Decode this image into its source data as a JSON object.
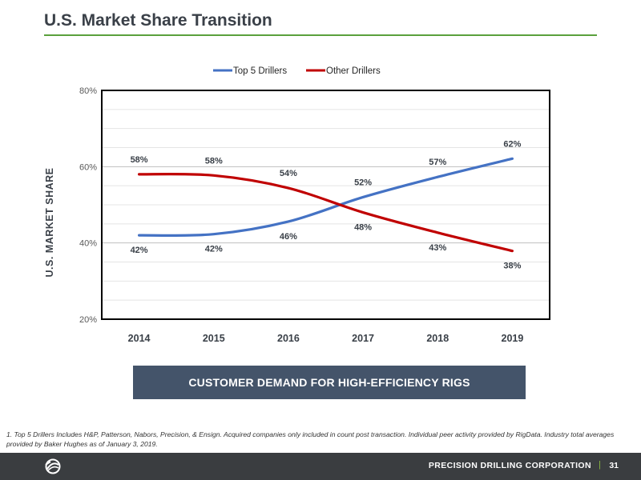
{
  "header": {
    "title": "U.S. Market Share Transition"
  },
  "chart_data": {
    "type": "line",
    "categories": [
      "2014",
      "2015",
      "2016",
      "2017",
      "2018",
      "2019"
    ],
    "series": [
      {
        "name": "Top 5 Drillers",
        "color": "#4472c4",
        "values": [
          42,
          42.3,
          45.6,
          52,
          57.3,
          62.1
        ],
        "labels": [
          "42%",
          "42%",
          "46%",
          "52%",
          "57%",
          "62%"
        ]
      },
      {
        "name": "Other Drillers",
        "color": "#c00000",
        "values": [
          58,
          57.7,
          54.4,
          48,
          42.7,
          37.9
        ],
        "labels": [
          "58%",
          "58%",
          "54%",
          "48%",
          "43%",
          "38%"
        ]
      }
    ],
    "ylabel": "U.S. MARKET SHARE",
    "ylim": [
      20,
      80
    ],
    "yticks": [
      20,
      40,
      60,
      80
    ],
    "ytick_labels": [
      "20%",
      "40%",
      "60%",
      "80%"
    ],
    "legend": "top-center",
    "grid": true
  },
  "banner": {
    "text": "CUSTOMER DEMAND FOR HIGH-EFFICIENCY RIGS"
  },
  "footnote": {
    "text": "1. Top 5 Drillers Includes H&P, Patterson, Nabors, Precision, & Ensign. Acquired companies only included in count post transaction. Individual peer activity provided by RigData. Industry total averages provided by Baker Hughes as of January 3, 2019."
  },
  "footer": {
    "company": "PRECISION DRILLING CORPORATION",
    "separator": "|",
    "page_number": "31"
  }
}
